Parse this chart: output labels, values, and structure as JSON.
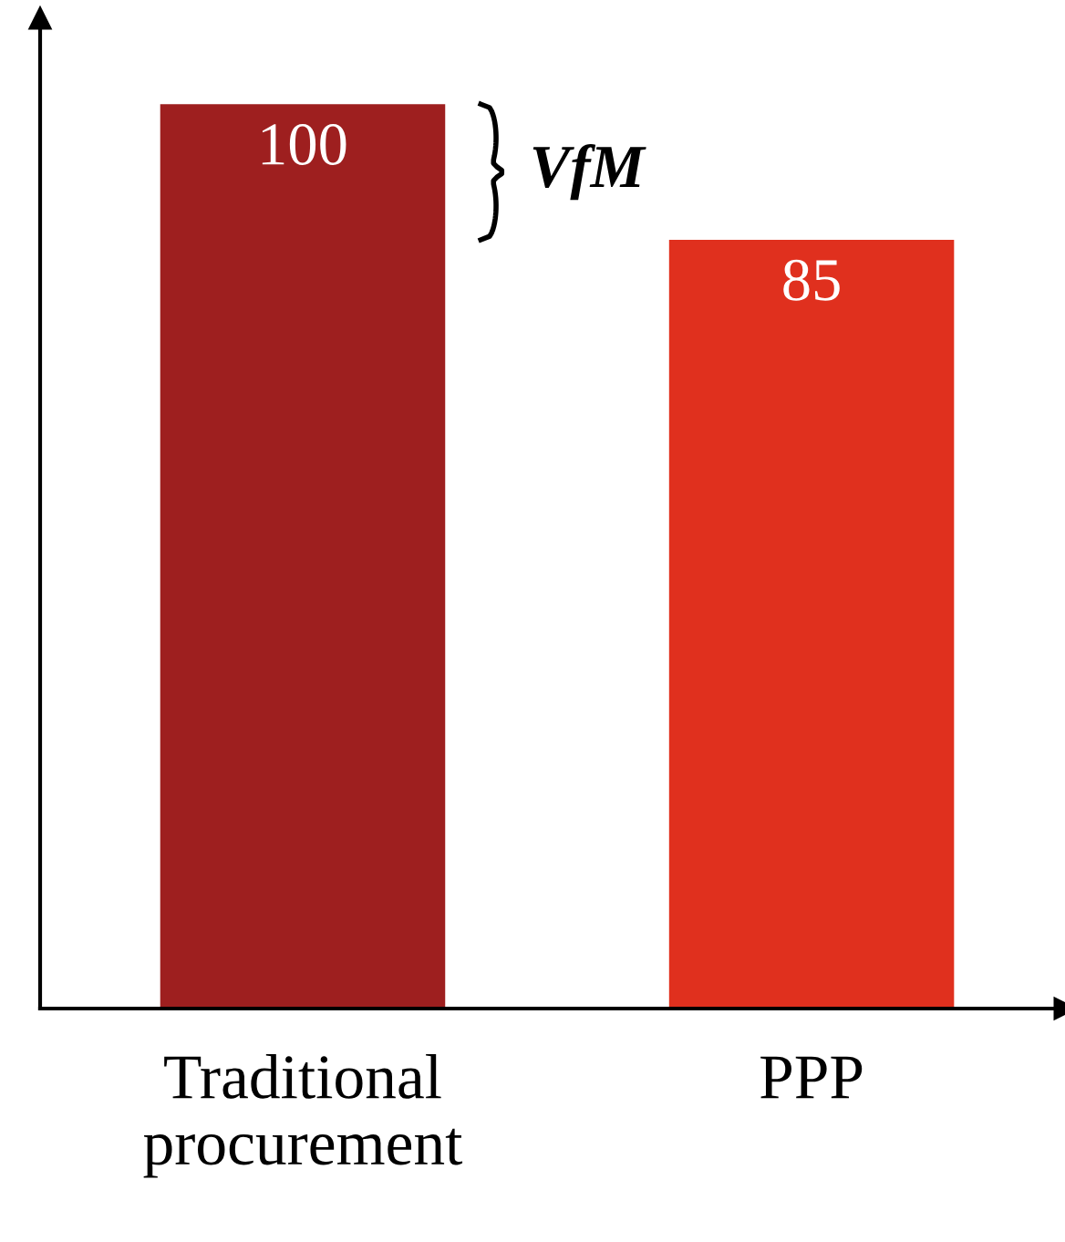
{
  "chart_data": {
    "type": "bar",
    "categories": [
      "Traditional\nprocurement",
      "PPP"
    ],
    "values": [
      100,
      85
    ],
    "colors": [
      "#9e1f1f",
      "#e0301e"
    ],
    "data_labels": true,
    "annotations": [
      "VfM"
    ],
    "grid": false,
    "legend": false
  }
}
